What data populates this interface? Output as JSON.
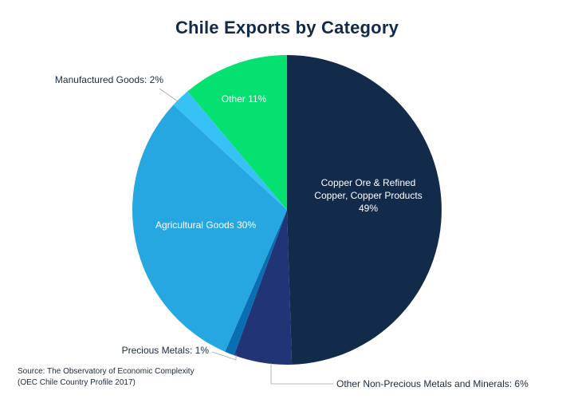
{
  "chart_data": {
    "type": "pie",
    "title": "Chile Exports by Category",
    "slices": [
      {
        "name": "Copper Ore & Refined Copper, Copper Products",
        "value": 49,
        "label_lines": [
          "Copper Ore & Refined",
          "Copper, Copper Products",
          "49%"
        ],
        "label_position": "inside",
        "color": "#132b4b"
      },
      {
        "name": "Other Non-Precious Metals and Minerals",
        "value": 6,
        "label_lines": [
          "Other Non-Precious Metals and Minerals: 6%"
        ],
        "label_position": "outside",
        "color": "#213476"
      },
      {
        "name": "Precious Metals",
        "value": 1,
        "label_lines": [
          "Precious Metals: 1%"
        ],
        "label_position": "outside",
        "color": "#0a6eb3"
      },
      {
        "name": "Agricultural Goods",
        "value": 30,
        "label_lines": [
          "Agricultural Goods 30%"
        ],
        "label_position": "inside",
        "color": "#27a7e1"
      },
      {
        "name": "Manufactured Goods",
        "value": 2,
        "label_lines": [
          "Manufactured Goods: 2%"
        ],
        "label_position": "outside",
        "color": "#37c2f5"
      },
      {
        "name": "Other",
        "value": 11,
        "label_lines": [
          "Other 11%"
        ],
        "label_position": "inside",
        "color": "#04e170"
      }
    ]
  },
  "source": {
    "line1": "Source: The Observatory of Economic Complexity",
    "line2": "(OEC Chile Country Profile 2017)"
  }
}
